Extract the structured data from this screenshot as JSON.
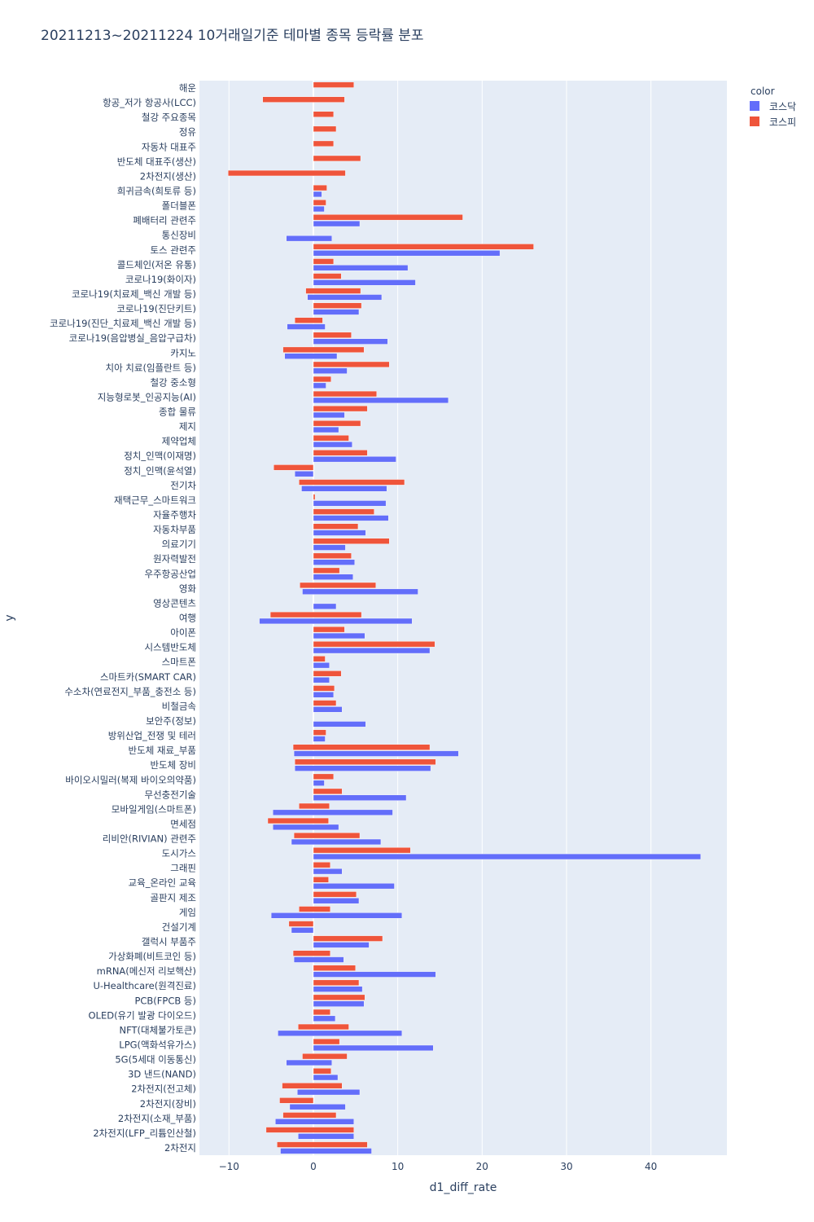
{
  "chart_data": {
    "type": "bar",
    "orientation": "horizontal",
    "barmode": "group",
    "title": "20211213~20211224 10거래일기준 테마별 종목 등락률 분포",
    "xlabel": "d1_diff_rate",
    "ylabel": "y",
    "xlim": [
      -13.5,
      49
    ],
    "xticks": [
      -10,
      0,
      10,
      20,
      30,
      40
    ],
    "grid": true,
    "legend": {
      "title": "color",
      "position": "top-right"
    },
    "colors": {
      "코스닥": "#636efa",
      "코스피": "#ef553b"
    },
    "series": [
      {
        "name": "코스닥",
        "color": "#636efa"
      },
      {
        "name": "코스피",
        "color": "#ef553b"
      }
    ],
    "categories": [
      {
        "name": "해운",
        "kosdaq": [],
        "kospi": [
          [
            0,
            4.8
          ]
        ]
      },
      {
        "name": "항공_저가 항공사(LCC)",
        "kosdaq": [],
        "kospi": [
          [
            -6,
            3.7
          ]
        ]
      },
      {
        "name": "철강 주요종목",
        "kosdaq": [],
        "kospi": [
          [
            0,
            2.4
          ]
        ]
      },
      {
        "name": "정유",
        "kosdaq": [],
        "kospi": [
          [
            0,
            2.7
          ]
        ]
      },
      {
        "name": "자동차 대표주",
        "kosdaq": [],
        "kospi": [
          [
            0,
            2.4
          ]
        ]
      },
      {
        "name": "반도체 대표주(생산)",
        "kosdaq": [],
        "kospi": [
          [
            0,
            5.6
          ]
        ]
      },
      {
        "name": "2차전지(생산)",
        "kosdaq": [],
        "kospi": [
          [
            -10.1,
            3.8
          ]
        ]
      },
      {
        "name": "희귀금속(희토류 등)",
        "kosdaq": [
          [
            0,
            1.0
          ]
        ],
        "kospi": [
          [
            0,
            1.6
          ]
        ]
      },
      {
        "name": "폴더블폰",
        "kosdaq": [
          [
            0,
            1.3
          ]
        ],
        "kospi": [
          [
            0,
            1.5
          ]
        ]
      },
      {
        "name": "폐배터리 관련주",
        "kosdaq": [
          [
            0,
            5.5
          ]
        ],
        "kospi": [
          [
            0,
            17.7
          ]
        ]
      },
      {
        "name": "통신장비",
        "kosdaq": [
          [
            -3.2,
            2.2
          ]
        ],
        "kospi": []
      },
      {
        "name": "토스 관련주",
        "kosdaq": [
          [
            0,
            22.1
          ]
        ],
        "kospi": [
          [
            0,
            26.1
          ]
        ]
      },
      {
        "name": "콜드체인(저온 유통)",
        "kosdaq": [
          [
            0,
            11.2
          ]
        ],
        "kospi": [
          [
            0,
            2.4
          ]
        ]
      },
      {
        "name": "코로나19(화이자)",
        "kosdaq": [
          [
            0,
            12.1
          ]
        ],
        "kospi": [
          [
            0,
            3.3
          ]
        ]
      },
      {
        "name": "코로나19(치료제_백신 개발 등)",
        "kosdaq": [
          [
            -0.7,
            8.1
          ]
        ],
        "kospi": [
          [
            -0.9,
            5.6
          ]
        ]
      },
      {
        "name": "코로나19(진단키트)",
        "kosdaq": [
          [
            0,
            5.4
          ]
        ],
        "kospi": [
          [
            0,
            5.7
          ]
        ]
      },
      {
        "name": "코로나19(진단_치료제_백신 개발 등)",
        "kosdaq": [
          [
            -3.1,
            1.4
          ]
        ],
        "kospi": [
          [
            -2.2,
            1.1
          ]
        ]
      },
      {
        "name": "코로나19(음압병실_음압구급차)",
        "kosdaq": [
          [
            0,
            8.8
          ]
        ],
        "kospi": [
          [
            0,
            4.5
          ]
        ]
      },
      {
        "name": "카지노",
        "kosdaq": [
          [
            -3.4,
            2.8
          ]
        ],
        "kospi": [
          [
            -3.6,
            6.0
          ]
        ]
      },
      {
        "name": "치아 치료(임플란트 등)",
        "kosdaq": [
          [
            0,
            4.0
          ]
        ],
        "kospi": [
          [
            0,
            9.0
          ]
        ]
      },
      {
        "name": "철강 중소형",
        "kosdaq": [
          [
            0,
            1.5
          ]
        ],
        "kospi": [
          [
            0,
            2.1
          ]
        ]
      },
      {
        "name": "지능형로봇_인공지능(AI)",
        "kosdaq": [
          [
            0,
            16.0
          ]
        ],
        "kospi": [
          [
            0,
            7.5
          ]
        ]
      },
      {
        "name": "종합 물류",
        "kosdaq": [
          [
            0,
            3.7
          ]
        ],
        "kospi": [
          [
            0,
            6.4
          ]
        ]
      },
      {
        "name": "제지",
        "kosdaq": [
          [
            0,
            3.0
          ]
        ],
        "kospi": [
          [
            0,
            5.6
          ]
        ]
      },
      {
        "name": "제약업체",
        "kosdaq": [
          [
            0,
            4.6
          ]
        ],
        "kospi": [
          [
            0,
            4.2
          ]
        ]
      },
      {
        "name": "정치_인맥(이재명)",
        "kosdaq": [
          [
            0,
            9.8
          ]
        ],
        "kospi": [
          [
            0,
            6.4
          ]
        ]
      },
      {
        "name": "정치_인맥(윤석열)",
        "kosdaq": [
          [
            -2.2,
            0
          ]
        ],
        "kospi": [
          [
            -4.7,
            0
          ]
        ]
      },
      {
        "name": "전기차",
        "kosdaq": [
          [
            -1.4,
            8.7
          ]
        ],
        "kospi": [
          [
            -1.7,
            10.8
          ]
        ]
      },
      {
        "name": "재택근무_스마트워크",
        "kosdaq": [
          [
            0,
            8.6
          ]
        ],
        "kospi": [
          [
            0,
            0.2
          ]
        ]
      },
      {
        "name": "자율주행차",
        "kosdaq": [
          [
            0,
            8.9
          ]
        ],
        "kospi": [
          [
            0,
            7.2
          ]
        ]
      },
      {
        "name": "자동차부품",
        "kosdaq": [
          [
            0,
            6.2
          ]
        ],
        "kospi": [
          [
            0,
            5.3
          ]
        ]
      },
      {
        "name": "의료기기",
        "kosdaq": [
          [
            0,
            3.8
          ]
        ],
        "kospi": [
          [
            0,
            9.0
          ]
        ]
      },
      {
        "name": "원자력발전",
        "kosdaq": [
          [
            0,
            4.9
          ]
        ],
        "kospi": [
          [
            0,
            4.5
          ]
        ]
      },
      {
        "name": "우주항공산업",
        "kosdaq": [
          [
            0,
            4.7
          ]
        ],
        "kospi": [
          [
            0,
            3.1
          ]
        ]
      },
      {
        "name": "영화",
        "kosdaq": [
          [
            -1.3,
            12.4
          ]
        ],
        "kospi": [
          [
            -1.6,
            7.4
          ]
        ]
      },
      {
        "name": "영상콘텐츠",
        "kosdaq": [
          [
            0,
            2.7
          ]
        ],
        "kospi": []
      },
      {
        "name": "여행",
        "kosdaq": [
          [
            -6.4,
            11.7
          ]
        ],
        "kospi": [
          [
            -5.1,
            5.7
          ]
        ]
      },
      {
        "name": "아이폰",
        "kosdaq": [
          [
            0,
            6.1
          ]
        ],
        "kospi": [
          [
            0,
            3.7
          ]
        ]
      },
      {
        "name": "시스템반도체",
        "kosdaq": [
          [
            0,
            13.8
          ]
        ],
        "kospi": [
          [
            0,
            14.4
          ]
        ]
      },
      {
        "name": "스마트폰",
        "kosdaq": [
          [
            0,
            1.9
          ]
        ],
        "kospi": [
          [
            0,
            1.4
          ]
        ]
      },
      {
        "name": "스마트카(SMART CAR)",
        "kosdaq": [
          [
            0,
            1.9
          ]
        ],
        "kospi": [
          [
            0,
            3.3
          ]
        ]
      },
      {
        "name": "수소차(연료전지_부품_충전소 등)",
        "kosdaq": [
          [
            0,
            2.4
          ]
        ],
        "kospi": [
          [
            0,
            2.5
          ]
        ]
      },
      {
        "name": "비철금속",
        "kosdaq": [
          [
            0,
            3.4
          ]
        ],
        "kospi": [
          [
            0,
            2.7
          ]
        ]
      },
      {
        "name": "보안주(정보)",
        "kosdaq": [
          [
            0,
            6.2
          ]
        ],
        "kospi": []
      },
      {
        "name": "방위산업_전쟁 및 테러",
        "kosdaq": [
          [
            0,
            1.4
          ]
        ],
        "kospi": [
          [
            0,
            1.5
          ]
        ]
      },
      {
        "name": "반도체 재료_부품",
        "kosdaq": [
          [
            -2.3,
            17.2
          ]
        ],
        "kospi": [
          [
            -2.4,
            13.8
          ]
        ]
      },
      {
        "name": "반도체 장비",
        "kosdaq": [
          [
            -2.2,
            13.9
          ]
        ],
        "kospi": [
          [
            -2.2,
            14.5
          ]
        ]
      },
      {
        "name": "바이오시밀러(복제 바이오의약품)",
        "kosdaq": [
          [
            0,
            1.3
          ]
        ],
        "kospi": [
          [
            0,
            2.4
          ]
        ]
      },
      {
        "name": "무선충전기술",
        "kosdaq": [
          [
            0,
            11.0
          ]
        ],
        "kospi": [
          [
            0,
            3.4
          ]
        ]
      },
      {
        "name": "모바일게임(스마트폰)",
        "kosdaq": [
          [
            -4.8,
            9.4
          ]
        ],
        "kospi": [
          [
            -1.7,
            1.9
          ]
        ]
      },
      {
        "name": "면세점",
        "kosdaq": [
          [
            -4.8,
            3.0
          ]
        ],
        "kospi": [
          [
            -5.4,
            1.8
          ]
        ]
      },
      {
        "name": "리비안(RIVIAN) 관련주",
        "kosdaq": [
          [
            -2.6,
            8.0
          ]
        ],
        "kospi": [
          [
            -2.3,
            5.5
          ]
        ]
      },
      {
        "name": "도시가스",
        "kosdaq": [
          [
            0,
            45.9
          ]
        ],
        "kospi": [
          [
            0,
            11.5
          ]
        ]
      },
      {
        "name": "그래핀",
        "kosdaq": [
          [
            0,
            3.4
          ]
        ],
        "kospi": [
          [
            0,
            2.0
          ]
        ]
      },
      {
        "name": "교육_온라인 교육",
        "kosdaq": [
          [
            0,
            9.6
          ]
        ],
        "kospi": [
          [
            0,
            1.8
          ]
        ]
      },
      {
        "name": "골판지 제조",
        "kosdaq": [
          [
            0,
            5.4
          ]
        ],
        "kospi": [
          [
            0,
            5.1
          ]
        ]
      },
      {
        "name": "게임",
        "kosdaq": [
          [
            -5.0,
            10.5
          ]
        ],
        "kospi": [
          [
            -1.7,
            2.0
          ]
        ]
      },
      {
        "name": "건설기계",
        "kosdaq": [
          [
            -2.6,
            0
          ]
        ],
        "kospi": [
          [
            -2.9,
            0
          ]
        ]
      },
      {
        "name": "갤럭시 부품주",
        "kosdaq": [
          [
            0,
            6.6
          ]
        ],
        "kospi": [
          [
            0,
            8.2
          ]
        ]
      },
      {
        "name": "가상화폐(비트코인 등)",
        "kosdaq": [
          [
            -2.3,
            3.6
          ]
        ],
        "kospi": [
          [
            -2.4,
            2.0
          ]
        ]
      },
      {
        "name": "mRNA(메신저 리보핵산)",
        "kosdaq": [
          [
            0,
            14.5
          ]
        ],
        "kospi": [
          [
            0,
            5.0
          ]
        ]
      },
      {
        "name": "U-Healthcare(원격진료)",
        "kosdaq": [
          [
            0,
            5.8
          ]
        ],
        "kospi": [
          [
            0,
            5.4
          ]
        ]
      },
      {
        "name": "PCB(FPCB 등)",
        "kosdaq": [
          [
            0,
            6.0
          ]
        ],
        "kospi": [
          [
            0,
            6.1
          ]
        ]
      },
      {
        "name": "OLED(유기 발광 다이오드)",
        "kosdaq": [
          [
            0,
            2.6
          ]
        ],
        "kospi": [
          [
            0,
            2.0
          ]
        ]
      },
      {
        "name": "NFT(대체불가토큰)",
        "kosdaq": [
          [
            -4.2,
            10.5
          ]
        ],
        "kospi": [
          [
            -1.8,
            4.2
          ]
        ]
      },
      {
        "name": "LPG(액화석유가스)",
        "kosdaq": [
          [
            0,
            14.2
          ]
        ],
        "kospi": [
          [
            0,
            3.1
          ]
        ]
      },
      {
        "name": "5G(5세대 이동통신)",
        "kosdaq": [
          [
            -3.2,
            2.2
          ]
        ],
        "kospi": [
          [
            -1.3,
            4.0
          ]
        ]
      },
      {
        "name": "3D 낸드(NAND)",
        "kosdaq": [
          [
            0,
            2.9
          ]
        ],
        "kospi": [
          [
            0,
            2.1
          ]
        ]
      },
      {
        "name": "2차전지(전고체)",
        "kosdaq": [
          [
            -1.9,
            5.5
          ]
        ],
        "kospi": [
          [
            -3.7,
            3.4
          ]
        ]
      },
      {
        "name": "2차전지(장비)",
        "kosdaq": [
          [
            -2.8,
            3.8
          ]
        ],
        "kospi": [
          [
            -4.0,
            0
          ]
        ]
      },
      {
        "name": "2차전지(소재_부품)",
        "kosdaq": [
          [
            -4.5,
            4.8
          ]
        ],
        "kospi": [
          [
            -3.6,
            2.7
          ]
        ]
      },
      {
        "name": "2차전지(LFP_리튬인산철)",
        "kosdaq": [
          [
            -1.8,
            4.8
          ]
        ],
        "kospi": [
          [
            -5.6,
            4.8
          ]
        ]
      },
      {
        "name": "2차전지",
        "kosdaq": [
          [
            -3.9,
            6.9
          ]
        ],
        "kospi": [
          [
            -4.3,
            6.4
          ]
        ]
      }
    ]
  }
}
